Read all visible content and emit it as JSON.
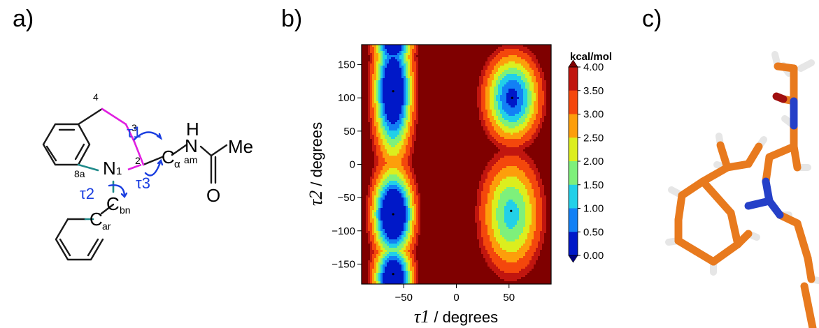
{
  "panels": {
    "a": "a)",
    "b": "b)",
    "c": "c)"
  },
  "molecule": {
    "atoms": {
      "n1": "N",
      "n1_num": "1",
      "c2": "2",
      "c3": "3",
      "c4": "4",
      "c8a": "8a",
      "ca": "C",
      "ca_sub": "α",
      "cbn": "C",
      "cbn_sub": "bn",
      "car": "C",
      "car_sub": "ar",
      "nam": "N",
      "nam_sub": "am",
      "h": "H",
      "o": "O",
      "me": "Me"
    },
    "torsions": {
      "t1": "τ1",
      "t2": "τ2",
      "t3": "τ3"
    },
    "colors": {
      "ring_bond": "#e020e0",
      "n_bond": "#1f8a8a",
      "arrow": "#1a3ee0"
    }
  },
  "chart_data": {
    "type": "heatmap",
    "subtype": "filled-contour",
    "xlabel_symbol": "τ1",
    "xlabel_unit": " / degrees",
    "ylabel_symbol": "τ2",
    "ylabel_unit": " / degrees",
    "xlim": [
      -90,
      90
    ],
    "ylim": [
      -180,
      180
    ],
    "xticks": [
      -50,
      0,
      50
    ],
    "yticks": [
      150,
      100,
      50,
      0,
      -50,
      -100,
      -150
    ],
    "xtick_labels": [
      "−50",
      "0",
      "50"
    ],
    "ytick_labels": [
      "150",
      "100",
      "50",
      "0",
      "−50",
      "−100",
      "−150"
    ],
    "colorbar": {
      "title": "kcal/mol",
      "levels": [
        4.0,
        3.5,
        3.0,
        2.5,
        2.0,
        1.5,
        1.0,
        0.5,
        0.0
      ],
      "labels": [
        "4.00",
        "3.50",
        "3.00",
        "2.50",
        "2.00",
        "1.50",
        "1.00",
        "0.50",
        "0.00"
      ],
      "colors": [
        "#7f0000",
        "#c1160f",
        "#f4470c",
        "#fd9e0b",
        "#dcee1e",
        "#7ef07b",
        "#22d0e8",
        "#1280f5",
        "#0018c8",
        "#00007f"
      ]
    },
    "minima": [
      {
        "tau1": -60,
        "tau2": 110,
        "energy": 0.5
      },
      {
        "tau1": -60,
        "tau2": -75,
        "energy": 0.0
      },
      {
        "tau1": -60,
        "tau2": -165,
        "energy": 0.5
      },
      {
        "tau1": 53,
        "tau2": 100,
        "energy": 0.5
      },
      {
        "tau1": 52,
        "tau2": -70,
        "energy": 1.5
      }
    ],
    "maxima": [
      {
        "tau1": -5,
        "tau2": 70,
        "energy": 4.0
      },
      {
        "tau1": -10,
        "tau2": -115,
        "energy": 4.0
      }
    ]
  },
  "structure3d": {
    "colors": {
      "carbon": "#e87a1e",
      "nitrogen": "#2540c8",
      "hydrogen": "#e6e6e6",
      "oxygen": "#a01010"
    }
  }
}
